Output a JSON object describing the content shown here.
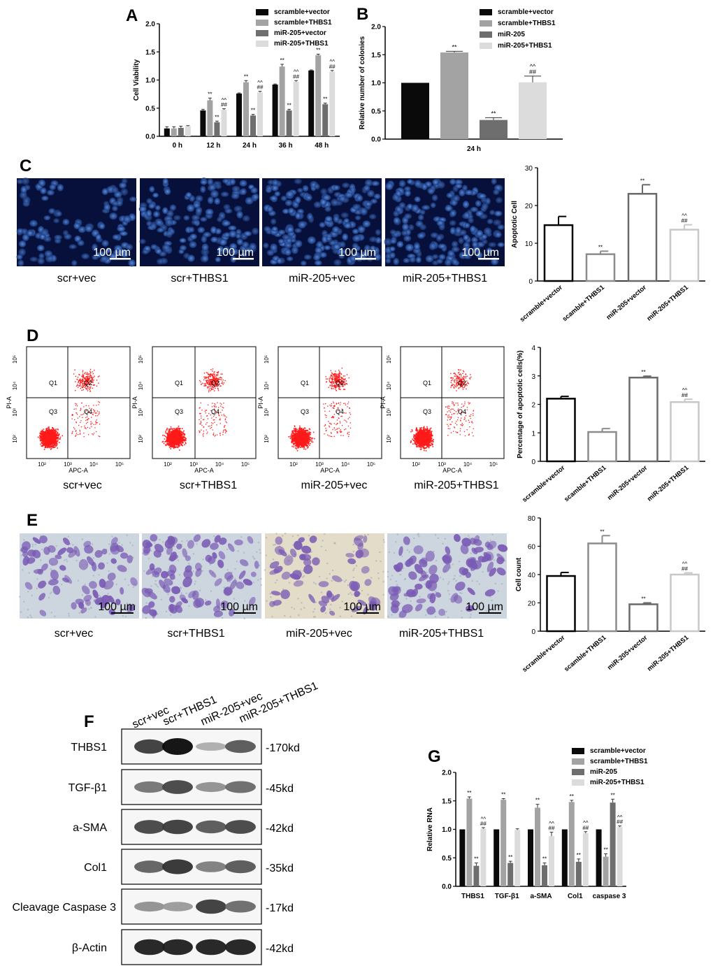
{
  "panel_letters": [
    "A",
    "B",
    "C",
    "D",
    "E",
    "F",
    "G"
  ],
  "colors": {
    "black": "#0a0a0a",
    "gray1": "#a3a3a3",
    "gray2": "#6e6e6e",
    "gray3": "#dcdcdc",
    "outline_black": "#000000",
    "outline_gray1": "#8c8c8c",
    "outline_gray2": "#6a6a6a",
    "outline_gray3": "#c8c8c8",
    "flow_dots": "#ff1a1a",
    "fluor_bg": "#07103a",
    "fluor_nucleus": "#3a6ec8",
    "transwell_bg": "#cdd6df",
    "transwell_cell": "#7a5bb4"
  },
  "image_panels": {
    "scale_bar": "100 µm",
    "C_labels": [
      "scr+vec",
      "scr+THBS1",
      "miR-205+vec",
      "miR-205+THBS1"
    ],
    "D_labels": [
      "scr+vec",
      "scr+THBS1",
      "miR-205+vec",
      "miR-205+THBS1"
    ],
    "E_labels": [
      "scr+vec",
      "scr+THBS1",
      "miR-205+vec",
      "miR-205+THBS1"
    ],
    "flow": {
      "x_axis_label": "APC-A",
      "y_axis_label": "PI-A",
      "quadrants": [
        "Q1",
        "Q2",
        "Q3",
        "Q4"
      ],
      "x_ticks": [
        "10²",
        "10³",
        "10⁴",
        "10⁵"
      ],
      "y_ticks": [
        "10²",
        "10³",
        "10⁴",
        "10⁵"
      ]
    }
  },
  "western": {
    "lanes": [
      "scr+vec",
      "scr+THBS1",
      "miR-205+vec",
      "miR-205+THBS1"
    ],
    "bands": [
      {
        "protein": "THBS1",
        "size": "-170kd",
        "intensity": [
          0.75,
          1.0,
          0.15,
          0.6
        ]
      },
      {
        "protein": "TGF-β1",
        "size": "-45kd",
        "intensity": [
          0.45,
          0.7,
          0.3,
          0.5
        ]
      },
      {
        "protein": "a-SMA",
        "size": "-42kd",
        "intensity": [
          0.7,
          0.75,
          0.6,
          0.7
        ]
      },
      {
        "protein": "Col1",
        "size": "-35kd",
        "intensity": [
          0.55,
          0.8,
          0.4,
          0.6
        ]
      },
      {
        "protein": "Cleavage Caspase 3",
        "size": "-17kd",
        "intensity": [
          0.3,
          0.25,
          0.75,
          0.5
        ]
      },
      {
        "protein": "β-Actin",
        "size": "-42kd",
        "intensity": [
          0.9,
          0.9,
          0.9,
          0.9
        ]
      }
    ]
  },
  "chart_data": [
    {
      "panel": "A",
      "type": "bar",
      "ylabel": "Cell Viability",
      "ylim": [
        0,
        2.0
      ],
      "yticks": [
        "0.0",
        "0.5",
        "1.0",
        "1.5",
        "2.0"
      ],
      "categories": [
        "0 h",
        "12 h",
        "24 h",
        "36 h",
        "48 h"
      ],
      "legend": "top-right",
      "series": [
        {
          "name": "scramble+vector",
          "values": [
            0.14,
            0.46,
            0.76,
            0.92,
            1.17
          ],
          "errors": [
            0.03,
            0.02,
            0.01,
            0.01,
            0.01
          ],
          "marks": [
            "",
            "",
            "",
            "",
            ""
          ]
        },
        {
          "name": "scramble+THBS1",
          "values": [
            0.14,
            0.64,
            0.96,
            1.24,
            1.44
          ],
          "errors": [
            0.03,
            0.04,
            0.03,
            0.04,
            0.02
          ],
          "marks": [
            "",
            "**",
            "**",
            "**",
            "**"
          ]
        },
        {
          "name": "miR-205+vector",
          "values": [
            0.15,
            0.25,
            0.37,
            0.46,
            0.57
          ],
          "errors": [
            0.03,
            0.02,
            0.02,
            0.02,
            0.02
          ],
          "marks": [
            "",
            "**",
            "**",
            "**",
            "**"
          ]
        },
        {
          "name": "miR-205+THBS1",
          "values": [
            0.18,
            0.47,
            0.78,
            0.97,
            1.15
          ],
          "errors": [
            0.01,
            0.02,
            0.02,
            0.02,
            0.02
          ],
          "marks": [
            "",
            "^^ ##",
            "^^ ##",
            "^^ ##",
            "^^ ##"
          ]
        }
      ]
    },
    {
      "panel": "B",
      "type": "bar",
      "ylabel": "Relative number of colonies",
      "ylim": [
        0,
        2.0
      ],
      "yticks": [
        "0.0",
        "0.5",
        "1.0",
        "1.5",
        "2.0"
      ],
      "categories": [
        "24 h"
      ],
      "legend": "top-right",
      "series": [
        {
          "name": "scramble+vector",
          "values": [
            1.0
          ],
          "errors": [
            0.0
          ],
          "marks": [
            ""
          ]
        },
        {
          "name": "scramble+THBS1",
          "values": [
            1.54
          ],
          "errors": [
            0.02
          ],
          "marks": [
            "**"
          ]
        },
        {
          "name": "miR-205",
          "values": [
            0.34
          ],
          "errors": [
            0.04
          ],
          "marks": [
            "**"
          ]
        },
        {
          "name": "miR-205+THBS1",
          "values": [
            1.01
          ],
          "errors": [
            0.11
          ],
          "marks": [
            "^^ ##"
          ]
        }
      ]
    },
    {
      "panel": "C",
      "type": "bar",
      "ylabel": "Apoptotic Cell",
      "ylim": [
        0,
        30
      ],
      "yticks": [
        "0",
        "10",
        "20",
        "30"
      ],
      "categories": [
        "scramble+vector",
        "scamble+THBS1",
        "miR-205+vector",
        "miR-205+THBS1"
      ],
      "values": [
        14.8,
        7.1,
        23.1,
        13.6
      ],
      "errors": [
        2.3,
        0.8,
        2.4,
        1.3
      ],
      "marks": [
        "",
        "**",
        "**",
        "^^ ##"
      ]
    },
    {
      "panel": "D",
      "type": "bar",
      "ylabel": "Percentage of apoptotic cells(%)",
      "ylim": [
        0,
        4
      ],
      "yticks": [
        "0",
        "1",
        "2",
        "3",
        "4"
      ],
      "categories": [
        "scramble+vector",
        "scamble+THBS1",
        "miR-205+vector",
        "miR-205+THBS1"
      ],
      "values": [
        2.2,
        1.03,
        2.94,
        2.08
      ],
      "errors": [
        0.08,
        0.12,
        0.05,
        0.1
      ],
      "marks": [
        "",
        "",
        "**",
        "^^ ##"
      ]
    },
    {
      "panel": "E",
      "type": "bar",
      "ylabel": "Cell count",
      "ylim": [
        0,
        80
      ],
      "yticks": [
        "0",
        "20",
        "40",
        "60",
        "80"
      ],
      "categories": [
        "scramble+vector",
        "scamble+THBS1",
        "miR-205+vector",
        "miR-205+THBS1"
      ],
      "values": [
        39,
        62,
        19,
        40
      ],
      "errors": [
        2.5,
        5.5,
        1.0,
        1.2
      ],
      "marks": [
        "",
        "**",
        "**",
        "^^ ##"
      ]
    },
    {
      "panel": "G",
      "type": "bar",
      "ylabel": "Relative RNA",
      "ylim": [
        0,
        2.0
      ],
      "yticks": [
        "0.0",
        "0.5",
        "1.0",
        "1.5",
        "2.0"
      ],
      "categories": [
        "THBS1",
        "TGF-β1",
        "a-SMA",
        "Col1",
        "caspase 3"
      ],
      "legend": "top-right",
      "series": [
        {
          "name": "scramble+vector",
          "values": [
            1.0,
            1.0,
            1.0,
            1.0,
            1.0
          ],
          "errors": [
            0,
            0,
            0,
            0,
            0
          ],
          "marks": [
            "",
            "",
            "",
            "",
            ""
          ]
        },
        {
          "name": "scramble+THBS1",
          "values": [
            1.54,
            1.52,
            1.38,
            1.48,
            0.52
          ],
          "errors": [
            0.03,
            0.02,
            0.06,
            0.03,
            0.05
          ],
          "marks": [
            "**",
            "**",
            "**",
            "**",
            "**"
          ]
        },
        {
          "name": "miR-205",
          "values": [
            0.36,
            0.41,
            0.37,
            0.43,
            1.47
          ],
          "errors": [
            0.05,
            0.03,
            0.04,
            0.05,
            0.06
          ],
          "marks": [
            "**",
            "**",
            "**",
            "**",
            "**"
          ]
        },
        {
          "name": "miR-205+THBS1",
          "values": [
            1.01,
            0.99,
            0.88,
            0.93,
            1.04
          ],
          "errors": [
            0.02,
            0.02,
            0.07,
            0.03,
            0.02
          ],
          "marks": [
            "^^ ##",
            "",
            "^^ ##",
            "^^ ##",
            "^^ ##"
          ]
        }
      ]
    }
  ]
}
